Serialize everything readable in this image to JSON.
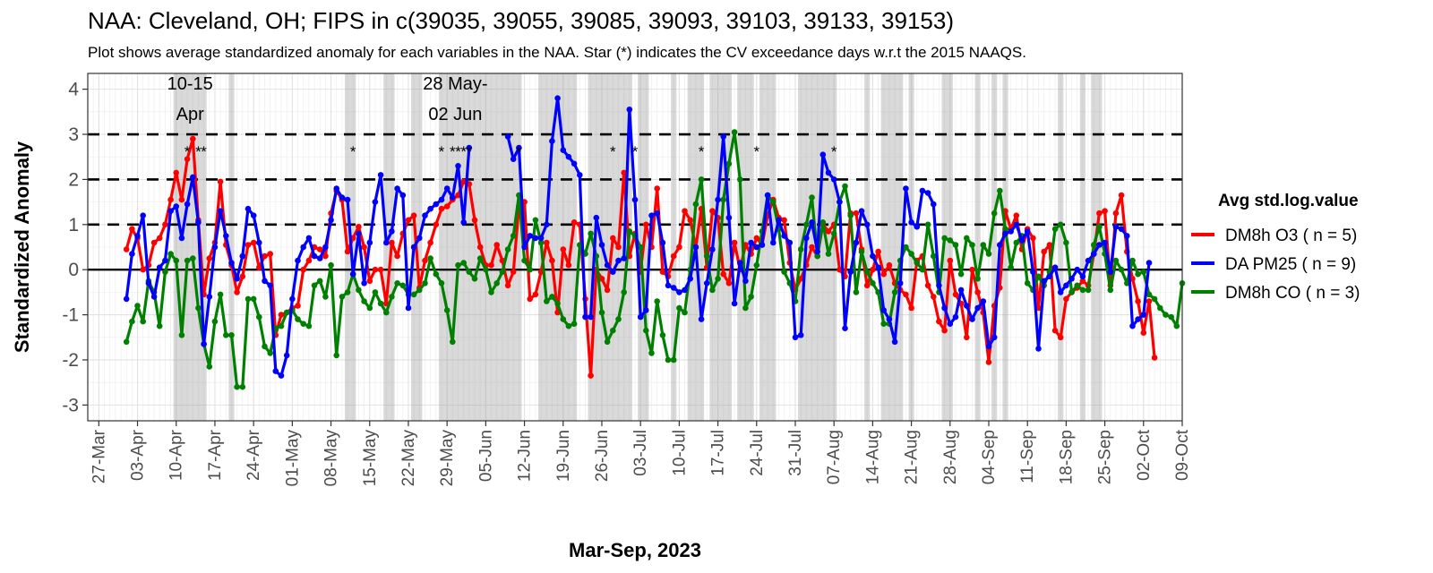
{
  "chart_data": {
    "type": "line",
    "title": "NAA: Cleveland, OH; FIPS in c(39035, 39055, 39085, 39093, 39103, 39133, 39153)",
    "subtitle": "Plot shows average standardized anomaly for each variables in the NAA. Star (*) indicates the CV exceedance days w.r.t the 2015 NAAQS.",
    "xlabel": "Mar-Sep, 2023",
    "ylabel": "Standardized Anomaly",
    "xlim": [
      "2023-03-25",
      "2023-10-09"
    ],
    "ylim": [
      -3.35,
      4.35
    ],
    "x_ticks": [
      "27-Mar",
      "03-Apr",
      "10-Apr",
      "17-Apr",
      "24-Apr",
      "01-May",
      "08-May",
      "15-May",
      "22-May",
      "29-May",
      "05-Jun",
      "12-Jun",
      "19-Jun",
      "26-Jun",
      "03-Jul",
      "10-Jul",
      "17-Jul",
      "24-Jul",
      "31-Jul",
      "07-Aug",
      "14-Aug",
      "21-Aug",
      "28-Aug",
      "04-Sep",
      "11-Sep",
      "18-Sep",
      "25-Sep",
      "02-Oct",
      "09-Oct"
    ],
    "y_ticks": [
      "-3",
      "-2",
      "-1",
      "0",
      "1",
      "2",
      "3",
      "4"
    ],
    "start_date": "2023-04-01",
    "grid": true,
    "legend": {
      "title": "Avg std.log.value",
      "position": "right",
      "entries": [
        "DM8h O3 ( n = 5)",
        "DA PM25 ( n = 9)",
        "DM8h CO ( n = 3)"
      ]
    },
    "reference_lines": [
      1,
      2,
      3
    ],
    "zero_line": 0,
    "shaded_days": [
      "2023-04-10",
      "2023-04-11",
      "2023-04-12",
      "2023-04-13",
      "2023-04-14",
      "2023-04-15",
      "2023-04-20",
      "2023-05-11",
      "2023-05-12",
      "2023-05-18",
      "2023-05-19",
      "2023-05-23",
      "2023-05-24",
      "2023-05-28",
      "2023-05-29",
      "2023-05-30",
      "2023-05-31",
      "2023-06-01",
      "2023-06-02",
      "2023-06-03",
      "2023-06-04",
      "2023-06-05",
      "2023-06-06",
      "2023-06-07",
      "2023-06-08",
      "2023-06-09",
      "2023-06-10",
      "2023-06-11",
      "2023-06-15",
      "2023-06-16",
      "2023-06-17",
      "2023-06-18",
      "2023-06-19",
      "2023-06-20",
      "2023-06-21",
      "2023-06-24",
      "2023-06-25",
      "2023-06-26",
      "2023-06-27",
      "2023-06-28",
      "2023-06-29",
      "2023-06-30",
      "2023-07-01",
      "2023-07-03",
      "2023-07-04",
      "2023-07-09",
      "2023-07-12",
      "2023-07-13",
      "2023-07-14",
      "2023-07-16",
      "2023-07-17",
      "2023-07-18",
      "2023-07-19",
      "2023-07-21",
      "2023-07-22",
      "2023-07-23",
      "2023-07-25",
      "2023-07-26",
      "2023-07-27",
      "2023-08-01",
      "2023-08-02",
      "2023-08-03",
      "2023-08-04",
      "2023-08-05",
      "2023-08-06",
      "2023-08-07",
      "2023-08-13",
      "2023-08-16",
      "2023-08-17",
      "2023-08-18",
      "2023-08-19",
      "2023-08-21",
      "2023-08-27",
      "2023-08-28",
      "2023-09-02",
      "2023-09-05",
      "2023-09-07",
      "2023-09-17",
      "2023-09-21",
      "2023-09-23",
      "2023-09-24"
    ],
    "exceedance_days": [
      "2023-04-12",
      "2023-04-14",
      "2023-04-15",
      "2023-05-12",
      "2023-05-28",
      "2023-05-30",
      "2023-05-31",
      "2023-06-01",
      "2023-06-02",
      "2023-06-11",
      "2023-06-28",
      "2023-07-02",
      "2023-07-14",
      "2023-07-24",
      "2023-08-07"
    ],
    "annotations": [
      {
        "lines": [
          "10-15",
          "Apr"
        ],
        "x": "2023-04-12.5"
      },
      {
        "lines": [
          "28 May-",
          "02 Jun"
        ],
        "x": "2023-05-30.5"
      }
    ],
    "series": [
      {
        "name": "DM8h O3 ( n = 5)",
        "color": "#ff0000",
        "values": [
          0.45,
          0.9,
          0.7,
          0.0,
          0.1,
          0.6,
          0.7,
          1.0,
          1.55,
          2.15,
          1.55,
          2.45,
          2.9,
          1.1,
          -0.55,
          0.25,
          0.6,
          1.95,
          0.55,
          0.1,
          -0.5,
          -0.15,
          0.55,
          0.6,
          0.05,
          0.3,
          0.35,
          -1.45,
          -1.0,
          -0.95,
          -0.85,
          -0.8,
          0.0,
          0.2,
          0.5,
          0.45,
          0.3,
          1.25,
          1.75,
          1.55,
          0.4,
          0.7,
          0.95,
          0.5,
          -0.25,
          0.0,
          0.0,
          -0.75,
          0.6,
          0.3,
          0.8,
          1.1,
          1.2,
          -0.4,
          0.2,
          0.6,
          1.0,
          1.35,
          1.4,
          1.55,
          1.65,
          1.95,
          1.9,
          1.1,
          0.5,
          0.1,
          0.1,
          0.55,
          0.2,
          -0.35,
          -0.05,
          1.4,
          1.5,
          -0.65,
          -0.55,
          -0.05,
          0.6,
          0.2,
          -0.95,
          0.45,
          0.1,
          1.05,
          1.0,
          -0.65,
          -2.35,
          0.0,
          -0.2,
          -0.45,
          0.7,
          0.5,
          2.15,
          0.3,
          0.8,
          -0.05,
          1.0,
          0.5,
          1.8,
          -0.05,
          -0.15,
          0.3,
          0.5,
          1.3,
          1.1,
          0.5,
          1.35,
          0.05,
          1.3,
          1.15,
          -0.1,
          -0.3,
          0.6,
          0.0,
          0.55,
          0.35,
          0.7,
          0.55,
          1.2,
          1.55,
          1.15,
          1.1,
          0.15,
          -0.45,
          -0.2,
          0.1,
          0.5,
          0.3,
          1.0,
          0.85,
          1.0,
          0.0,
          -0.15,
          1.25,
          1.25,
          0.45,
          -0.35,
          0.0,
          0.4,
          -0.1,
          0.1,
          -0.3,
          -0.45,
          -0.55,
          -0.85,
          0.2,
          0.3,
          -0.35,
          -0.6,
          -1.15,
          -1.35,
          0.2,
          -0.55,
          -0.75,
          -1.5,
          0.0,
          -0.5,
          -0.95,
          -2.05,
          -0.8,
          -0.4,
          1.3,
          0.9,
          1.2,
          0.45,
          0.9,
          0.7,
          -0.85,
          0.4,
          0.55,
          -1.35,
          -1.5,
          -0.65,
          -0.5,
          -0.4,
          -0.25,
          -0.35,
          0.35,
          1.25,
          1.3,
          -0.35,
          1.25,
          1.65,
          0.4,
          -0.2,
          -0.7,
          -1.4,
          -0.7,
          -1.95
        ]
      },
      {
        "name": "DA PM25 ( n = 9)",
        "color": "#0000ff",
        "values": [
          -0.65,
          0.35,
          0.75,
          1.2,
          -0.3,
          -0.6,
          0.05,
          0.2,
          1.3,
          1.4,
          0.7,
          1.45,
          2.05,
          1.05,
          -1.65,
          -0.6,
          0.5,
          1.3,
          0.75,
          0.15,
          -0.2,
          0.3,
          1.35,
          1.2,
          0.6,
          -0.25,
          -0.35,
          -2.25,
          -2.35,
          -1.9,
          -0.65,
          0.2,
          0.5,
          0.7,
          0.3,
          0.25,
          0.5,
          1.1,
          1.8,
          1.6,
          1.55,
          -0.1,
          0.8,
          -0.3,
          0.6,
          1.5,
          2.1,
          0.6,
          0.85,
          1.8,
          1.65,
          -0.85,
          0.5,
          0.7,
          1.2,
          1.35,
          1.45,
          1.55,
          1.8,
          1.6,
          2.3,
          1.05,
          2.7,
          null,
          null,
          null,
          null,
          null,
          null,
          2.95,
          2.45,
          2.7,
          0.5,
          0.75,
          0.7,
          0.7,
          1.0,
          2.85,
          3.8,
          2.65,
          2.5,
          2.35,
          2.1,
          -1.05,
          -1.05,
          1.15,
          0.55,
          0.1,
          -0.05,
          0.2,
          0.25,
          3.55,
          1.55,
          -1.05,
          -0.9,
          1.2,
          1.25,
          0.6,
          -0.35,
          -0.4,
          -0.5,
          -0.45,
          -0.2,
          0.5,
          -1.1,
          -0.3,
          0.45,
          1.55,
          2.95,
          1.15,
          -0.75,
          0.15,
          -0.25,
          0.6,
          0.5,
          0.55,
          1.65,
          0.6,
          1.1,
          0.75,
          0.6,
          -1.5,
          -1.45,
          0.7,
          1.05,
          0.4,
          2.55,
          2.15,
          2.0,
          1.5,
          -1.3,
          -0.05,
          0.6,
          1.3,
          1.0,
          0.3,
          0.05,
          -0.9,
          -1.1,
          -1.6,
          -0.3,
          1.8,
          1.05,
          0.95,
          1.75,
          1.7,
          1.45,
          -0.35,
          -0.85,
          -1.2,
          -1.05,
          -0.45,
          -0.8,
          -1.1,
          -0.85,
          -0.7,
          -1.7,
          -1.5,
          0.55,
          0.8,
          0.85,
          1.0,
          0.65,
          0.85,
          -0.05,
          -1.75,
          -0.25,
          -0.15,
          0.05,
          -0.5,
          -0.35,
          -0.2,
          0.0,
          -0.15,
          0.2,
          0.35,
          0.55,
          0.6,
          -0.05,
          0.95,
          0.9,
          0.75,
          -1.25,
          -1.1,
          -1.0,
          0.15
        ]
      },
      {
        "name": "DM8h CO ( n = 3)",
        "color": "#008000",
        "values": [
          -1.6,
          -1.15,
          -0.8,
          -1.15,
          -0.25,
          -0.5,
          -1.25,
          -0.05,
          0.35,
          0.2,
          -1.45,
          0.2,
          0.25,
          -0.85,
          -1.65,
          -2.15,
          -1.15,
          -0.55,
          -1.45,
          -1.45,
          -2.6,
          -2.6,
          -0.65,
          -0.65,
          -1.05,
          -1.7,
          -1.85,
          -1.3,
          -1.25,
          -0.95,
          -0.9,
          -1.1,
          -1.2,
          -1.25,
          -0.35,
          -0.25,
          -0.6,
          0.1,
          -1.9,
          -0.6,
          -0.5,
          -0.1,
          -0.45,
          -0.7,
          -0.85,
          -0.5,
          -0.75,
          -0.95,
          -0.6,
          -0.3,
          -0.35,
          -0.55,
          -0.55,
          -0.45,
          -0.3,
          0.25,
          -0.1,
          -0.3,
          -0.9,
          -1.6,
          0.1,
          0.15,
          -0.05,
          -0.2,
          0.25,
          0.0,
          -0.5,
          -0.3,
          -0.05,
          0.45,
          0.75,
          1.65,
          0.2,
          0.0,
          1.1,
          0.6,
          -0.7,
          -0.6,
          -0.75,
          -1.1,
          -1.25,
          -1.2,
          0.55,
          0.35,
          0.8,
          0.3,
          -0.95,
          -1.6,
          -1.35,
          -1.1,
          -0.5,
          0.85,
          0.75,
          0.5,
          -1.35,
          -1.85,
          -0.7,
          -1.45,
          -2.0,
          -2.0,
          -0.85,
          -0.95,
          0.0,
          1.45,
          2.0,
          0.3,
          -0.45,
          -0.2,
          1.55,
          2.35,
          3.05,
          2.0,
          -0.85,
          -0.6,
          0.1,
          0.85,
          1.65,
          1.5,
          0.9,
          -0.05,
          -0.3,
          -0.7,
          0.45,
          1.0,
          1.6,
          0.3,
          1.05,
          0.35,
          0.8,
          1.5,
          1.85,
          1.2,
          -0.5,
          0.4,
          -0.05,
          -0.3,
          -0.5,
          -1.2,
          -1.2,
          -0.5,
          0.2,
          0.5,
          0.35,
          0.15,
          0.0,
          1.0,
          0.3,
          -0.5,
          0.7,
          0.65,
          0.55,
          -0.1,
          0.7,
          0.55,
          -0.2,
          0.55,
          0.35,
          1.25,
          1.75,
          0.9,
          0.05,
          0.6,
          0.75,
          -0.3,
          -0.45,
          -0.15,
          -0.35,
          -0.05,
          0.9,
          1.0,
          0.6,
          -0.5,
          -0.35,
          -0.45,
          -0.45,
          0.55,
          0.95,
          0.35,
          -0.45,
          0.2,
          0.0,
          -0.3,
          0.2,
          -0.1,
          -0.05,
          -0.55,
          -0.65,
          -0.85,
          -1.0,
          -1.05,
          -1.25,
          -0.3
        ]
      }
    ]
  }
}
